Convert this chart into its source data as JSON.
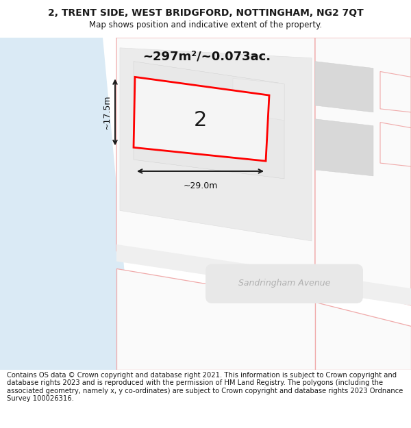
{
  "title_line1": "2, TRENT SIDE, WEST BRIDGFORD, NOTTINGHAM, NG2 7QT",
  "title_line2": "Map shows position and indicative extent of the property.",
  "footer_text": "Contains OS data © Crown copyright and database right 2021. This information is subject to Crown copyright and database rights 2023 and is reproduced with the permission of HM Land Registry. The polygons (including the associated geometry, namely x, y co-ordinates) are subject to Crown copyright and database rights 2023 Ordnance Survey 100026316.",
  "area_text": "~297m²/~0.073ac.",
  "width_label": "~29.0m",
  "height_label": "~17.5m",
  "number_label": "2",
  "bg_color": "#ffffff",
  "water_color": "#daeaf5",
  "building_gray": "#d8d8d8",
  "lot_gray": "#e8e8e8",
  "pink_edge": "#f0aaaa",
  "pink_fill": "#fafafa",
  "property_edge": "#ff0000",
  "road_label_color": "#b0b0b0",
  "title_fontsize": 10,
  "subtitle_fontsize": 8.5,
  "footer_fontsize": 7.2,
  "area_fontsize": 13,
  "dim_fontsize": 9,
  "number_fontsize": 22
}
